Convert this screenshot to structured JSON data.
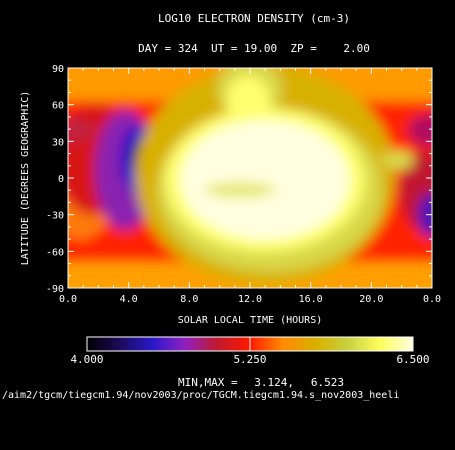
{
  "chart_data": {
    "type": "heatmap",
    "title": "LOG10 ELECTRON DENSITY (cm-3)",
    "subtitle": "DAY = 324  UT = 19.00  ZP =    2.00",
    "xlabel": "SOLAR LOCAL TIME (HOURS)",
    "ylabel": "LATITUDE (DEGREES GEOGRAPHIC)",
    "xlim": [
      0,
      24
    ],
    "ylim": [
      -90,
      90
    ],
    "x_ticks": [
      "0.0",
      "4.0",
      "8.0",
      "12.0",
      "16.0",
      "20.0",
      "0.0"
    ],
    "x_tick_values": [
      0,
      4,
      8,
      12,
      16,
      20,
      24
    ],
    "y_ticks": [
      "90",
      "60",
      "30",
      "0",
      "-30",
      "-60",
      "-90"
    ],
    "y_tick_values": [
      90,
      60,
      30,
      0,
      -30,
      -60,
      -90
    ],
    "colorbar": {
      "min_label": "4.000",
      "mid_label": "5.250",
      "max_label": "6.500",
      "range": [
        4.0,
        6.5
      ]
    },
    "minmax_label": "MIN,MAX =",
    "min_value": "3.124,",
    "max_value": "6.523",
    "data_min": 3.124,
    "data_max": 6.523
  },
  "footer_path": "/aim2/tgcm/tiegcm1.94/nov2003/proc/TGCM.tiegcm1.94.s_nov2003_heeli"
}
